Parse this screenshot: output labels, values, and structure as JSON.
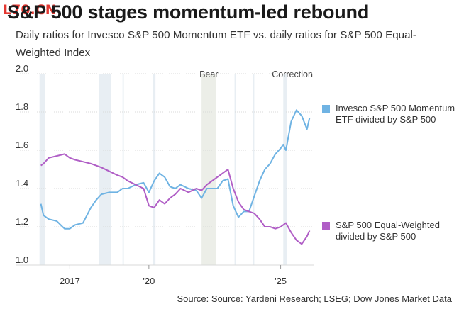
{
  "header": {
    "watermark": "L70.CN",
    "title": "S&P 500 stages momentum-led rebound",
    "subtitle": "Daily ratios for Invesco S&P 500 Momentum ETF vs. daily ratios for S&P 500 Equal-Weighted Index"
  },
  "footer": {
    "source": "Source: Source: Yardeni Research; LSEG; Dow Jones Market Data"
  },
  "colors": {
    "momentum": "#6fb3e3",
    "equal_weight": "#b05ec6",
    "shading": "#e8eef3",
    "shading_bear": "#eceee8",
    "gridline": "#d9d9d9"
  },
  "chart_data": {
    "type": "line",
    "title": "S&P 500 stages momentum-led rebound",
    "subtitle": "Daily ratios for Invesco S&P 500 Momentum ETF vs. daily ratios for S&P 500 Equal-Weighted Index",
    "xlabel": "",
    "ylabel": "",
    "xlim": [
      2015.75,
      2026.25
    ],
    "ylim": [
      1.0,
      2.0
    ],
    "y_ticks": [
      "2.0",
      "1.8",
      "1.6",
      "1.4",
      "1.2",
      "1.0"
    ],
    "x_tick_labels": [
      {
        "label": "2017",
        "x": 2017.0
      },
      {
        "label": "'20",
        "x": 2020.0
      },
      {
        "label": "'25",
        "x": 2025.0
      }
    ],
    "grid": "horizontal",
    "legend": "right",
    "shaded_periods": [
      {
        "start": 2015.85,
        "end": 2016.05,
        "label": ""
      },
      {
        "start": 2018.1,
        "end": 2018.55,
        "label": ""
      },
      {
        "start": 2019.0,
        "end": 2019.05,
        "label": ""
      },
      {
        "start": 2020.15,
        "end": 2020.25,
        "label": ""
      },
      {
        "start": 2022.0,
        "end": 2022.55,
        "label": "Bear"
      },
      {
        "start": 2023.25,
        "end": 2023.3,
        "label": ""
      },
      {
        "start": 2023.95,
        "end": 2024.0,
        "label": ""
      },
      {
        "start": 2025.1,
        "end": 2025.25,
        "label": "Correction"
      }
    ],
    "series": [
      {
        "name": "Invesco S&P 500 Momentum ETF divided by S&P 500",
        "color": "#6fb3e3",
        "x": [
          2015.9,
          2016.0,
          2016.2,
          2016.5,
          2016.8,
          2017.0,
          2017.2,
          2017.5,
          2017.8,
          2018.0,
          2018.2,
          2018.5,
          2018.8,
          2019.0,
          2019.2,
          2019.5,
          2019.8,
          2020.0,
          2020.2,
          2020.4,
          2020.6,
          2020.8,
          2021.0,
          2021.2,
          2021.5,
          2021.8,
          2022.0,
          2022.2,
          2022.4,
          2022.6,
          2022.8,
          2023.0,
          2023.2,
          2023.4,
          2023.6,
          2023.8,
          2024.0,
          2024.2,
          2024.4,
          2024.6,
          2024.8,
          2025.0,
          2025.1,
          2025.2,
          2025.4,
          2025.6,
          2025.8,
          2026.0,
          2026.1
        ],
        "y": [
          1.32,
          1.26,
          1.24,
          1.23,
          1.19,
          1.19,
          1.21,
          1.22,
          1.3,
          1.34,
          1.37,
          1.38,
          1.38,
          1.4,
          1.4,
          1.42,
          1.43,
          1.38,
          1.44,
          1.48,
          1.46,
          1.41,
          1.4,
          1.42,
          1.4,
          1.39,
          1.35,
          1.4,
          1.4,
          1.4,
          1.44,
          1.45,
          1.31,
          1.25,
          1.28,
          1.28,
          1.36,
          1.44,
          1.5,
          1.53,
          1.58,
          1.61,
          1.63,
          1.6,
          1.75,
          1.81,
          1.78,
          1.71,
          1.77
        ]
      },
      {
        "name": "S&P 500 Equal-Weighted divided by S&P 500",
        "color": "#b05ec6",
        "x": [
          2015.9,
          2016.0,
          2016.2,
          2016.5,
          2016.8,
          2017.0,
          2017.2,
          2017.5,
          2017.8,
          2018.0,
          2018.2,
          2018.5,
          2018.8,
          2019.0,
          2019.2,
          2019.5,
          2019.8,
          2020.0,
          2020.2,
          2020.4,
          2020.6,
          2020.8,
          2021.0,
          2021.2,
          2021.5,
          2021.8,
          2022.0,
          2022.2,
          2022.4,
          2022.6,
          2022.8,
          2023.0,
          2023.2,
          2023.4,
          2023.6,
          2023.8,
          2024.0,
          2024.2,
          2024.4,
          2024.6,
          2024.8,
          2025.0,
          2025.1,
          2025.2,
          2025.4,
          2025.6,
          2025.8,
          2026.0,
          2026.1
        ],
        "y": [
          1.52,
          1.53,
          1.56,
          1.57,
          1.58,
          1.56,
          1.55,
          1.54,
          1.53,
          1.52,
          1.51,
          1.49,
          1.47,
          1.46,
          1.44,
          1.42,
          1.4,
          1.31,
          1.3,
          1.34,
          1.32,
          1.35,
          1.37,
          1.4,
          1.38,
          1.4,
          1.39,
          1.42,
          1.44,
          1.46,
          1.48,
          1.5,
          1.4,
          1.33,
          1.29,
          1.28,
          1.27,
          1.24,
          1.2,
          1.2,
          1.19,
          1.2,
          1.21,
          1.22,
          1.17,
          1.13,
          1.11,
          1.15,
          1.18
        ]
      }
    ]
  }
}
